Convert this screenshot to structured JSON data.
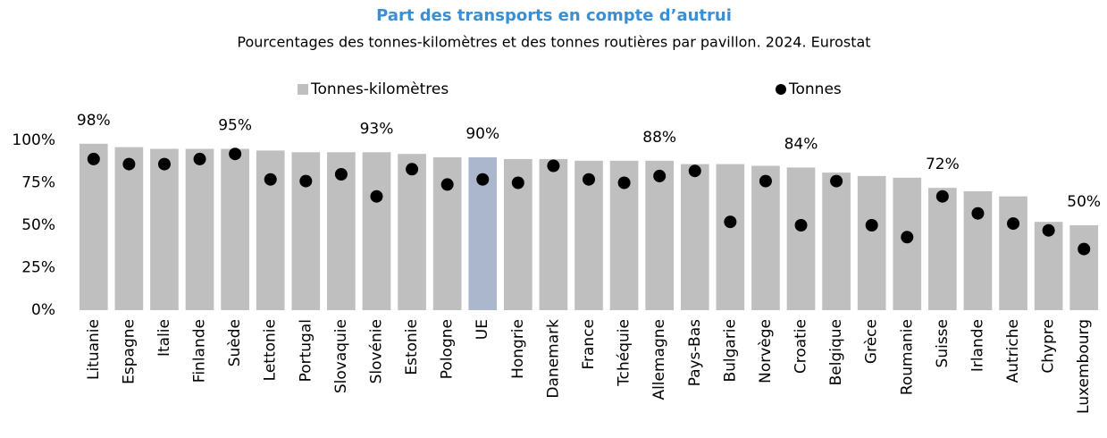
{
  "chart_data": {
    "type": "bar",
    "title": "Part des transports en compte d’autrui",
    "subtitle": "Pourcentages des tonnes-kilomètres et des tonnes routières par pavillon. 2024. Eurostat",
    "categories": [
      "Lituanie",
      "Espagne",
      "Italie",
      "Finlande",
      "Suède",
      "Lettonie",
      "Portugal",
      "Slovaquie",
      "Slovénie",
      "Estonie",
      "Pologne",
      "UE",
      "Hongrie",
      "Danemark",
      "France",
      "Tchéquie",
      "Allemagne",
      "Pays-Bas",
      "Bulgarie",
      "Norvège",
      "Croatie",
      "Belgique",
      "Grèce",
      "Roumanie",
      "Suisse",
      "Irlande",
      "Autriche",
      "Chypre",
      "Luxembourg"
    ],
    "series": [
      {
        "name": "Tonnes-kilomètres",
        "style": "bar",
        "color": "#bfbfbf",
        "colors": [
          "#bfbfbf",
          "#bfbfbf",
          "#bfbfbf",
          "#bfbfbf",
          "#bfbfbf",
          "#bfbfbf",
          "#bfbfbf",
          "#bfbfbf",
          "#bfbfbf",
          "#bfbfbf",
          "#bfbfbf",
          "#aab7cd",
          "#bfbfbf",
          "#bfbfbf",
          "#bfbfbf",
          "#bfbfbf",
          "#bfbfbf",
          "#bfbfbf",
          "#bfbfbf",
          "#bfbfbf",
          "#bfbfbf",
          "#bfbfbf",
          "#bfbfbf",
          "#bfbfbf",
          "#bfbfbf",
          "#bfbfbf",
          "#bfbfbf",
          "#bfbfbf",
          "#bfbfbf"
        ],
        "values": [
          98,
          96,
          95,
          95,
          95,
          94,
          93,
          93,
          93,
          92,
          90,
          90,
          89,
          89,
          88,
          88,
          88,
          86,
          86,
          85,
          84,
          81,
          79,
          78,
          72,
          70,
          67,
          52,
          50
        ],
        "value_labels": [
          "98%",
          null,
          null,
          null,
          "95%",
          null,
          null,
          null,
          "93%",
          null,
          null,
          "90%",
          null,
          null,
          null,
          null,
          "88%",
          null,
          null,
          null,
          "84%",
          null,
          null,
          null,
          "72%",
          null,
          null,
          null,
          "50%"
        ]
      },
      {
        "name": "Tonnes",
        "style": "dot",
        "color": "#000000",
        "values": [
          89,
          86,
          86,
          89,
          92,
          77,
          76,
          80,
          67,
          83,
          74,
          77,
          75,
          85,
          77,
          75,
          79,
          82,
          52,
          76,
          50,
          76,
          50,
          43,
          67,
          57,
          51,
          47,
          36
        ]
      }
    ],
    "ylim": [
      0,
      100
    ],
    "yticks": [
      {
        "value": 0,
        "label": "0%"
      },
      {
        "value": 25,
        "label": "25%"
      },
      {
        "value": 50,
        "label": "50%"
      },
      {
        "value": 75,
        "label": "75%"
      },
      {
        "value": 100,
        "label": "100%"
      }
    ],
    "grid": false,
    "legend": "top"
  }
}
